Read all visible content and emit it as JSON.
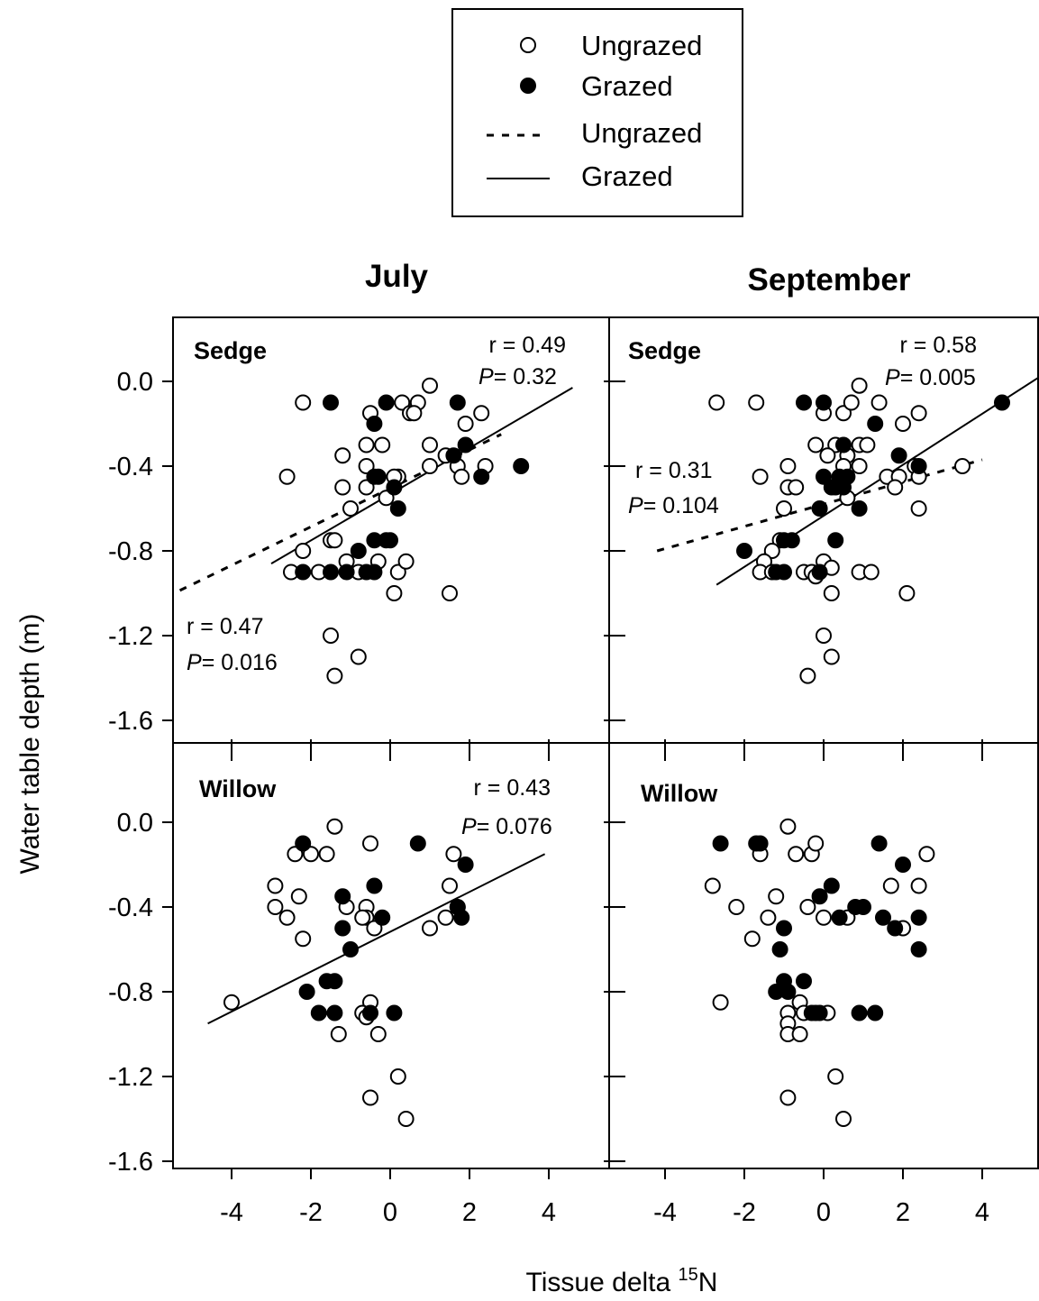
{
  "chart_data": {
    "type": "scatter",
    "xlabel": "Tissue delta",
    "xlabel_sup": "15",
    "xlabel_suffix": "N",
    "ylabel": "Water table depth (m)",
    "xlim": [
      -6,
      5.5
    ],
    "ylim": [
      -1.7,
      0.3
    ],
    "xticks": [
      -4,
      -2,
      0,
      2,
      4
    ],
    "xtick_labels": [
      "-4",
      "-2",
      "0",
      "2",
      "4"
    ],
    "yticks": [
      0.0,
      -0.4,
      -0.8,
      -1.2,
      -1.6
    ],
    "ytick_labels": [
      "0.0",
      "-0.4",
      "-0.8",
      "-1.2",
      "-1.6"
    ],
    "grid": false,
    "legend_placement": "top-center",
    "legend": [
      {
        "label": "Ungrazed",
        "kind": "open-circle"
      },
      {
        "label": "Grazed",
        "kind": "filled-circle"
      },
      {
        "label": "Ungrazed",
        "kind": "dashed-line"
      },
      {
        "label": "Grazed",
        "kind": "solid-line"
      }
    ],
    "columns": [
      "July",
      "September"
    ],
    "panels": [
      {
        "id": "july-sedge",
        "month": "July",
        "label": "Sedge",
        "stats": [
          {
            "r": "r = 0.49",
            "p": "= 0.32",
            "series": "Grazed",
            "anchor": "top-right"
          },
          {
            "r": "r = 0.47",
            "p": "= 0.016",
            "series": "Ungrazed",
            "anchor": "bottom-left"
          }
        ],
        "fits": [
          {
            "series": "Grazed",
            "style": "solid",
            "x": [
              -3.0,
              4.6
            ],
            "y": [
              -0.86,
              -0.03
            ]
          },
          {
            "series": "Ungrazed",
            "style": "dashed",
            "x": [
              -6.0,
              2.8
            ],
            "y": [
              -1.05,
              -0.25
            ]
          }
        ],
        "ungrazed": [
          [
            -2.2,
            -0.1
          ],
          [
            -1.5,
            -0.75
          ],
          [
            -0.5,
            -0.15
          ],
          [
            0.3,
            -0.1
          ],
          [
            0.5,
            -0.15
          ],
          [
            0.7,
            -0.1
          ],
          [
            1.0,
            -0.02
          ],
          [
            0.6,
            -0.15
          ],
          [
            2.3,
            -0.15
          ],
          [
            1.9,
            -0.2
          ],
          [
            -2.6,
            -0.45
          ],
          [
            -1.2,
            -0.35
          ],
          [
            -1.2,
            -0.5
          ],
          [
            -0.6,
            -0.3
          ],
          [
            -0.2,
            -0.3
          ],
          [
            -0.6,
            -0.4
          ],
          [
            -0.6,
            -0.5
          ],
          [
            0.2,
            -0.45
          ],
          [
            0.1,
            -0.45
          ],
          [
            -0.1,
            -0.55
          ],
          [
            1.0,
            -0.3
          ],
          [
            1.0,
            -0.4
          ],
          [
            1.4,
            -0.35
          ],
          [
            1.7,
            -0.4
          ],
          [
            1.8,
            -0.45
          ],
          [
            2.4,
            -0.4
          ],
          [
            -1.0,
            -0.6
          ],
          [
            -2.2,
            -0.8
          ],
          [
            -1.4,
            -0.75
          ],
          [
            -2.5,
            -0.9
          ],
          [
            -1.8,
            -0.9
          ],
          [
            -1.1,
            -0.85
          ],
          [
            -0.8,
            -0.9
          ],
          [
            -0.3,
            -0.85
          ],
          [
            0.2,
            -0.9
          ],
          [
            0.4,
            -0.85
          ],
          [
            0.1,
            -1.0
          ],
          [
            1.5,
            -1.0
          ],
          [
            -1.5,
            -1.2
          ],
          [
            -0.8,
            -1.3
          ],
          [
            -1.4,
            -1.39
          ]
        ],
        "grazed": [
          [
            -1.5,
            -0.1
          ],
          [
            -0.4,
            -0.2
          ],
          [
            -0.1,
            -0.1
          ],
          [
            1.7,
            -0.1
          ],
          [
            1.6,
            -0.35
          ],
          [
            1.9,
            -0.3
          ],
          [
            -0.3,
            -0.45
          ],
          [
            0.1,
            -0.5
          ],
          [
            -0.4,
            -0.45
          ],
          [
            3.3,
            -0.4
          ],
          [
            2.3,
            -0.45
          ],
          [
            0.2,
            -0.6
          ],
          [
            -0.8,
            -0.8
          ],
          [
            -0.4,
            -0.75
          ],
          [
            -0.1,
            -0.75
          ],
          [
            0.0,
            -0.75
          ],
          [
            -2.2,
            -0.9
          ],
          [
            -1.5,
            -0.9
          ],
          [
            -1.1,
            -0.9
          ],
          [
            -0.6,
            -0.9
          ],
          [
            -0.4,
            -0.9
          ]
        ]
      },
      {
        "id": "september-sedge",
        "month": "September",
        "label": "Sedge",
        "stats": [
          {
            "r": "r = 0.58",
            "p": "= 0.005",
            "series": "Grazed",
            "anchor": "top-right"
          },
          {
            "r": "r = 0.31",
            "p": "= 0.104",
            "series": "Ungrazed",
            "anchor": "middle-left"
          }
        ],
        "fits": [
          {
            "series": "Grazed",
            "style": "solid",
            "x": [
              -2.7,
              5.6
            ],
            "y": [
              -0.96,
              0.04
            ]
          },
          {
            "series": "Ungrazed",
            "style": "dashed",
            "x": [
              -4.2,
              4.0
            ],
            "y": [
              -0.8,
              -0.37
            ]
          }
        ],
        "ungrazed": [
          [
            -2.7,
            -0.1
          ],
          [
            -1.7,
            -0.1
          ],
          [
            0.9,
            -0.02
          ],
          [
            0.5,
            -0.15
          ],
          [
            1.4,
            -0.1
          ],
          [
            2.4,
            -0.15
          ],
          [
            2.0,
            -0.2
          ],
          [
            0.0,
            -0.15
          ],
          [
            0.7,
            -0.1
          ],
          [
            -0.2,
            -0.3
          ],
          [
            0.3,
            -0.3
          ],
          [
            0.9,
            -0.3
          ],
          [
            1.1,
            -0.3
          ],
          [
            0.1,
            -0.35
          ],
          [
            0.6,
            -0.35
          ],
          [
            -1.6,
            -0.45
          ],
          [
            -0.9,
            -0.4
          ],
          [
            -0.9,
            -0.5
          ],
          [
            -0.7,
            -0.5
          ],
          [
            -1.0,
            -0.6
          ],
          [
            0.5,
            -0.4
          ],
          [
            0.9,
            -0.4
          ],
          [
            1.6,
            -0.45
          ],
          [
            1.9,
            -0.45
          ],
          [
            2.3,
            -0.4
          ],
          [
            2.4,
            -0.45
          ],
          [
            1.8,
            -0.5
          ],
          [
            2.4,
            -0.6
          ],
          [
            3.5,
            -0.4
          ],
          [
            0.6,
            -0.55
          ],
          [
            -1.1,
            -0.75
          ],
          [
            -1.3,
            -0.8
          ],
          [
            -1.5,
            -0.85
          ],
          [
            -1.6,
            -0.9
          ],
          [
            -1.3,
            -0.9
          ],
          [
            -0.5,
            -0.9
          ],
          [
            -0.3,
            -0.9
          ],
          [
            -0.2,
            -0.92
          ],
          [
            0.0,
            -0.85
          ],
          [
            0.2,
            -0.88
          ],
          [
            0.9,
            -0.9
          ],
          [
            1.2,
            -0.9
          ],
          [
            2.1,
            -1.0
          ],
          [
            0.2,
            -1.0
          ],
          [
            0.0,
            -1.2
          ],
          [
            0.2,
            -1.3
          ],
          [
            -0.4,
            -1.39
          ]
        ],
        "grazed": [
          [
            -0.5,
            -0.1
          ],
          [
            0.0,
            -0.1
          ],
          [
            1.3,
            -0.2
          ],
          [
            4.5,
            -0.1
          ],
          [
            0.5,
            -0.3
          ],
          [
            1.9,
            -0.35
          ],
          [
            2.4,
            -0.4
          ],
          [
            0.0,
            -0.45
          ],
          [
            0.2,
            -0.5
          ],
          [
            0.4,
            -0.45
          ],
          [
            0.6,
            -0.45
          ],
          [
            0.3,
            -0.5
          ],
          [
            0.5,
            -0.5
          ],
          [
            -0.1,
            -0.6
          ],
          [
            0.9,
            -0.6
          ],
          [
            -2.0,
            -0.8
          ],
          [
            -1.0,
            -0.75
          ],
          [
            -0.8,
            -0.75
          ],
          [
            0.3,
            -0.75
          ],
          [
            -1.2,
            -0.9
          ],
          [
            -1.0,
            -0.9
          ],
          [
            -0.1,
            -0.9
          ]
        ]
      },
      {
        "id": "july-willow",
        "month": "July",
        "label": "Willow",
        "stats": [
          {
            "r": "r = 0.43",
            "p": "= 0.076",
            "series": "Grazed",
            "anchor": "top-right"
          }
        ],
        "fits": [
          {
            "series": "Grazed",
            "style": "solid",
            "x": [
              -4.6,
              3.9
            ],
            "y": [
              -0.95,
              -0.15
            ]
          }
        ],
        "ungrazed": [
          [
            -1.4,
            -0.02
          ],
          [
            -2.4,
            -0.15
          ],
          [
            -2.0,
            -0.15
          ],
          [
            -1.6,
            -0.15
          ],
          [
            -0.5,
            -0.1
          ],
          [
            1.6,
            -0.15
          ],
          [
            -2.9,
            -0.3
          ],
          [
            -2.3,
            -0.35
          ],
          [
            -1.1,
            -0.4
          ],
          [
            -0.6,
            -0.4
          ],
          [
            1.5,
            -0.3
          ],
          [
            1.7,
            -0.4
          ],
          [
            -2.9,
            -0.4
          ],
          [
            -2.6,
            -0.45
          ],
          [
            -0.6,
            -0.45
          ],
          [
            -0.4,
            -0.5
          ],
          [
            -0.7,
            -0.45
          ],
          [
            1.4,
            -0.45
          ],
          [
            1.0,
            -0.5
          ],
          [
            -2.2,
            -0.55
          ],
          [
            -4.0,
            -0.85
          ],
          [
            -0.5,
            -0.85
          ],
          [
            -0.7,
            -0.9
          ],
          [
            -0.3,
            -1.0
          ],
          [
            -1.3,
            -1.0
          ],
          [
            -0.6,
            -0.92
          ],
          [
            0.2,
            -1.2
          ],
          [
            -0.5,
            -1.3
          ],
          [
            0.4,
            -1.4
          ]
        ],
        "grazed": [
          [
            -2.2,
            -0.1
          ],
          [
            0.7,
            -0.1
          ],
          [
            1.9,
            -0.2
          ],
          [
            -0.4,
            -0.3
          ],
          [
            -1.2,
            -0.35
          ],
          [
            -1.2,
            -0.5
          ],
          [
            -0.2,
            -0.45
          ],
          [
            1.7,
            -0.4
          ],
          [
            1.8,
            -0.45
          ],
          [
            -1.0,
            -0.6
          ],
          [
            -1.6,
            -0.75
          ],
          [
            -1.4,
            -0.75
          ],
          [
            -2.1,
            -0.8
          ],
          [
            -1.8,
            -0.9
          ],
          [
            -1.4,
            -0.9
          ],
          [
            -0.5,
            -0.9
          ],
          [
            0.1,
            -0.9
          ]
        ]
      },
      {
        "id": "september-willow",
        "month": "September",
        "label": "Willow",
        "stats": [],
        "fits": [],
        "ungrazed": [
          [
            -0.9,
            -0.02
          ],
          [
            -1.6,
            -0.15
          ],
          [
            -0.7,
            -0.15
          ],
          [
            -0.3,
            -0.15
          ],
          [
            -0.2,
            -0.1
          ],
          [
            2.6,
            -0.15
          ],
          [
            -2.8,
            -0.3
          ],
          [
            -2.2,
            -0.4
          ],
          [
            -1.2,
            -0.35
          ],
          [
            -1.4,
            -0.45
          ],
          [
            -0.4,
            -0.4
          ],
          [
            0.0,
            -0.45
          ],
          [
            0.6,
            -0.45
          ],
          [
            1.7,
            -0.3
          ],
          [
            2.4,
            -0.3
          ],
          [
            2.0,
            -0.5
          ],
          [
            -1.8,
            -0.55
          ],
          [
            -2.6,
            -0.85
          ],
          [
            -0.6,
            -0.85
          ],
          [
            -0.9,
            -0.9
          ],
          [
            -0.9,
            -0.95
          ],
          [
            -0.5,
            -0.9
          ],
          [
            -0.9,
            -1.0
          ],
          [
            -0.6,
            -1.0
          ],
          [
            0.1,
            -0.9
          ],
          [
            -0.9,
            -1.3
          ],
          [
            0.3,
            -1.2
          ],
          [
            0.5,
            -1.4
          ]
        ],
        "grazed": [
          [
            -2.6,
            -0.1
          ],
          [
            -1.7,
            -0.1
          ],
          [
            -1.6,
            -0.1
          ],
          [
            1.4,
            -0.1
          ],
          [
            2.0,
            -0.2
          ],
          [
            0.2,
            -0.3
          ],
          [
            -0.1,
            -0.35
          ],
          [
            0.8,
            -0.4
          ],
          [
            1.0,
            -0.4
          ],
          [
            0.4,
            -0.45
          ],
          [
            1.5,
            -0.45
          ],
          [
            1.8,
            -0.5
          ],
          [
            2.4,
            -0.45
          ],
          [
            -1.0,
            -0.5
          ],
          [
            -1.1,
            -0.6
          ],
          [
            2.4,
            -0.6
          ],
          [
            -1.0,
            -0.75
          ],
          [
            -0.5,
            -0.75
          ],
          [
            -1.2,
            -0.8
          ],
          [
            -0.9,
            -0.8
          ],
          [
            -0.3,
            -0.9
          ],
          [
            -0.1,
            -0.9
          ],
          [
            -0.2,
            -0.9
          ],
          [
            0.9,
            -0.9
          ],
          [
            1.3,
            -0.9
          ]
        ]
      }
    ]
  }
}
